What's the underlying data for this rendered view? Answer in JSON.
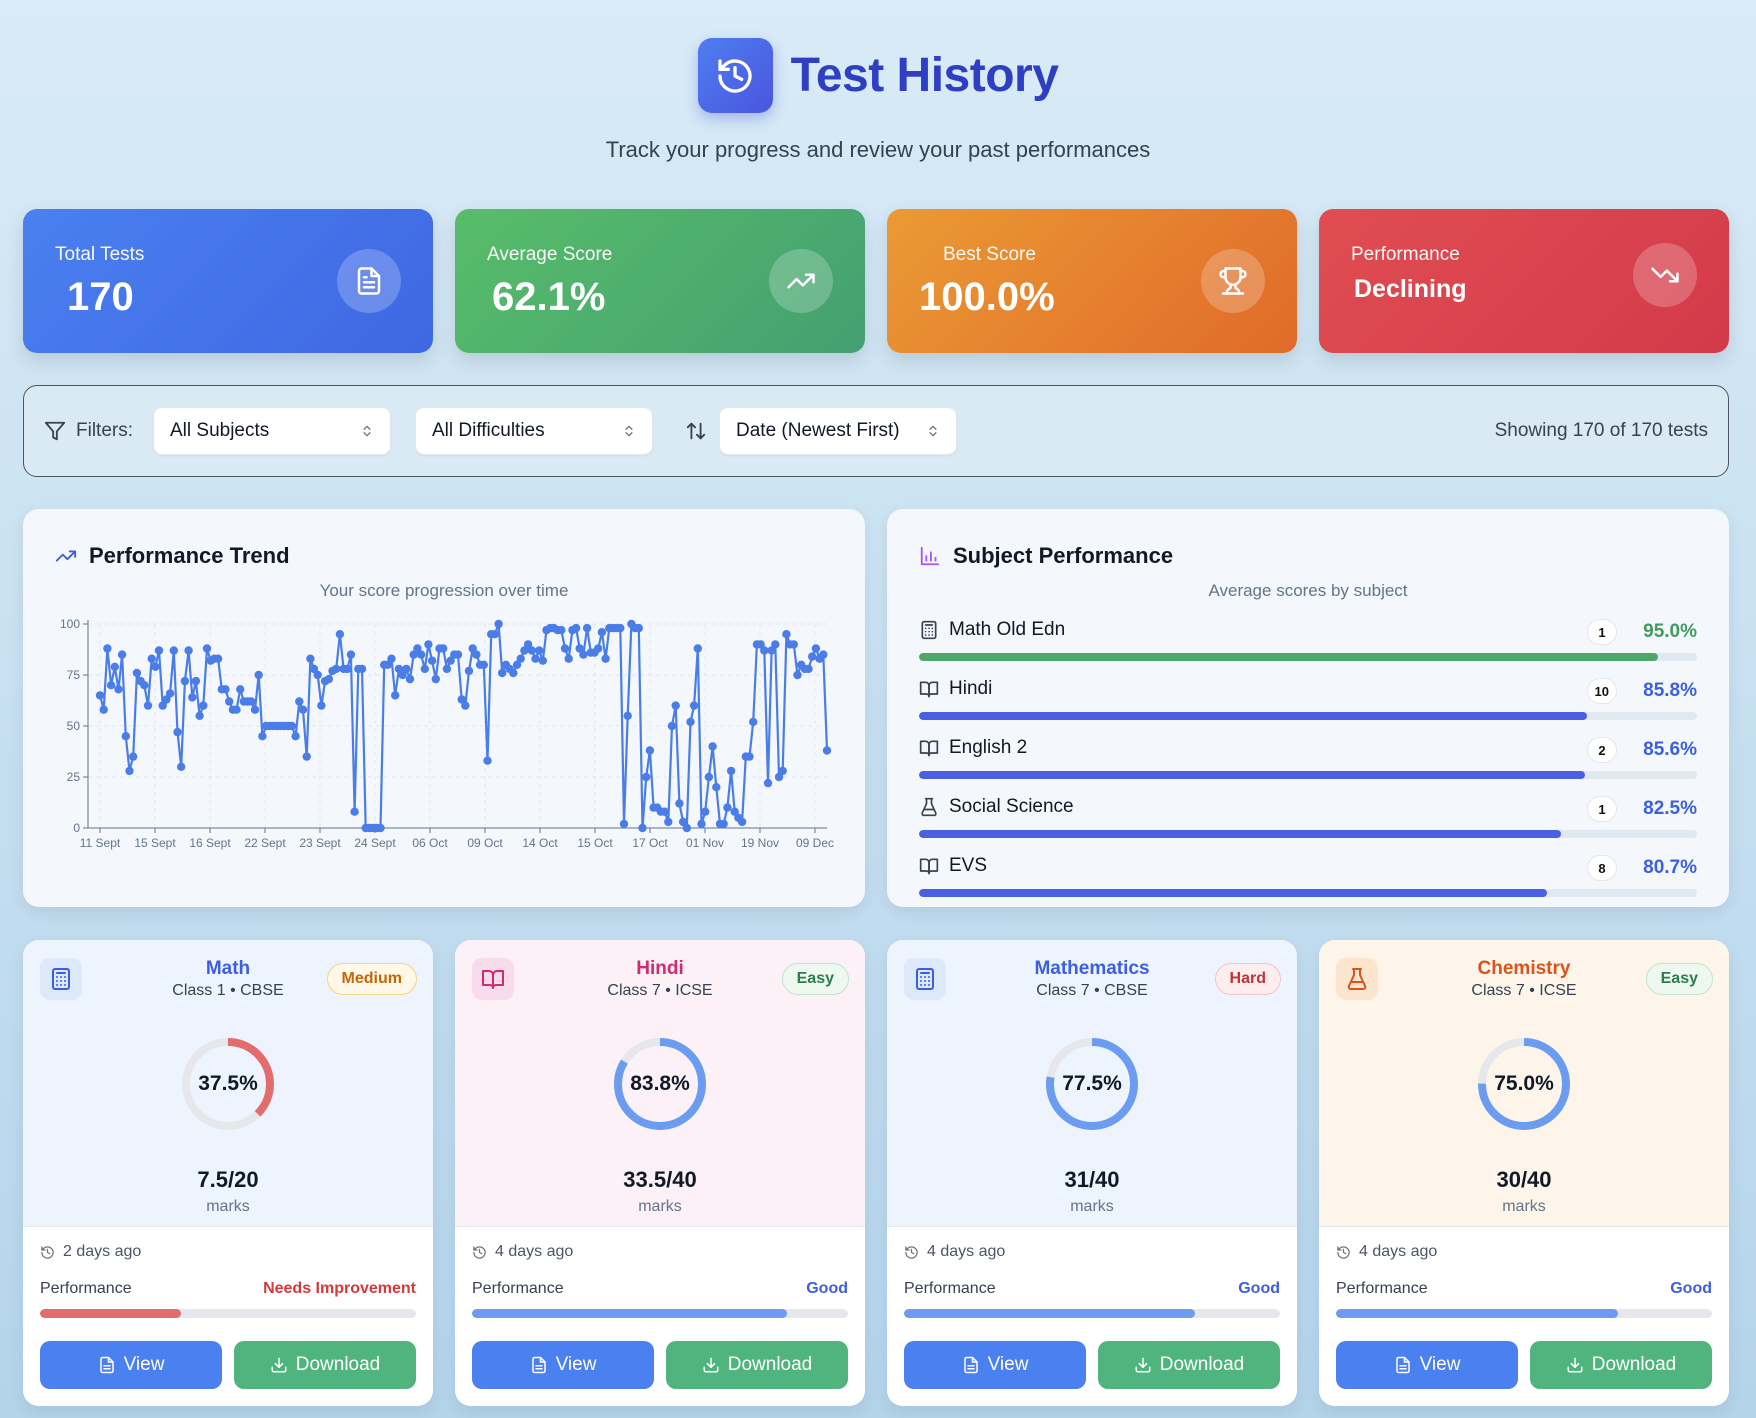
{
  "header": {
    "title": "Test History",
    "subtitle": "Track your progress and review your past performances",
    "icon": "history-icon"
  },
  "stats": [
    {
      "label": "Total Tests",
      "value": "170",
      "icon": "document-icon"
    },
    {
      "label": "Average Score",
      "value": "62.1%",
      "icon": "trending-up-icon"
    },
    {
      "label": "Best Score",
      "value": "100.0%",
      "icon": "trophy-icon"
    },
    {
      "label": "Performance",
      "value": "Declining",
      "icon": "trending-down-icon"
    }
  ],
  "filters": {
    "label": "Filters:",
    "subject": "All Subjects",
    "difficulty": "All Difficulties",
    "sort": "Date (Newest First)",
    "count": "Showing 170 of 170 tests"
  },
  "trend": {
    "title": "Performance Trend",
    "subtitle": "Your score progression over time"
  },
  "subject_performance": {
    "title": "Subject Performance",
    "subtitle": "Average scores by subject",
    "items": [
      {
        "name": "Math Old Edn",
        "icon": "calculator-icon",
        "count": "1",
        "pct": "95.0%",
        "value": 95.0,
        "color": "#3f9c5e",
        "bar": "#4fa66a"
      },
      {
        "name": "Hindi",
        "icon": "book-icon",
        "count": "10",
        "pct": "85.8%",
        "value": 85.8,
        "color": "#3b5fe0",
        "bar": "#4b5fe3"
      },
      {
        "name": "English 2",
        "icon": "book-icon",
        "count": "2",
        "pct": "85.6%",
        "value": 85.6,
        "color": "#3b5fe0",
        "bar": "#4b5fe3"
      },
      {
        "name": "Social Science",
        "icon": "flask-icon",
        "count": "1",
        "pct": "82.5%",
        "value": 82.5,
        "color": "#3b5fe0",
        "bar": "#4b5fe3"
      },
      {
        "name": "EVS",
        "icon": "book-icon",
        "count": "8",
        "pct": "80.7%",
        "value": 80.7,
        "color": "#3b5fe0",
        "bar": "#4b5fe3"
      }
    ]
  },
  "tests": [
    {
      "subject": "Math",
      "class": "Class 1 • CBSE",
      "difficulty": "Medium",
      "percent": "37.5%",
      "percent_value": 37.5,
      "marks": "7.5/20",
      "marks_label": "marks",
      "ago": "2 days ago",
      "perf_label": "Performance",
      "perf": "Needs Improvement",
      "view": "View",
      "download": "Download",
      "icon": "calculator-icon"
    },
    {
      "subject": "Hindi",
      "class": "Class 7 • ICSE",
      "difficulty": "Easy",
      "percent": "83.8%",
      "percent_value": 83.8,
      "marks": "33.5/40",
      "marks_label": "marks",
      "ago": "4 days ago",
      "perf_label": "Performance",
      "perf": "Good",
      "view": "View",
      "download": "Download",
      "icon": "book-icon"
    },
    {
      "subject": "Mathematics",
      "class": "Class 7 • CBSE",
      "difficulty": "Hard",
      "percent": "77.5%",
      "percent_value": 77.5,
      "marks": "31/40",
      "marks_label": "marks",
      "ago": "4 days ago",
      "perf_label": "Performance",
      "perf": "Good",
      "view": "View",
      "download": "Download",
      "icon": "calculator-icon"
    },
    {
      "subject": "Chemistry",
      "class": "Class 7 • ICSE",
      "difficulty": "Easy",
      "percent": "75.0%",
      "percent_value": 75.0,
      "marks": "30/40",
      "marks_label": "marks",
      "ago": "4 days ago",
      "perf_label": "Performance",
      "perf": "Good",
      "view": "View",
      "download": "Download",
      "icon": "flask-icon"
    }
  ],
  "chart_data": {
    "type": "line",
    "title": "Performance Trend",
    "subtitle": "Your score progression over time",
    "xlabel": "",
    "ylabel": "",
    "ylim": [
      0,
      100
    ],
    "yticks": [
      0,
      25,
      50,
      75,
      100
    ],
    "xtick_labels": [
      "11 Sept",
      "15 Sept",
      "16 Sept",
      "22 Sept",
      "23 Sept",
      "24 Sept",
      "06 Oct",
      "09 Oct",
      "14 Oct",
      "15 Oct",
      "17 Oct",
      "01 Nov",
      "19 Nov",
      "09 Dec"
    ],
    "grid": true,
    "series": [
      {
        "color": "#4a7de8",
        "values": [
          65,
          58,
          88,
          70,
          79,
          68,
          85,
          45,
          28,
          35,
          76,
          72,
          70,
          60,
          83,
          79,
          87,
          60,
          63,
          66,
          87,
          47,
          30,
          72,
          87,
          64,
          72,
          55,
          60,
          88,
          82,
          83,
          83,
          68,
          68,
          62,
          58,
          58,
          68,
          62,
          62,
          62,
          58,
          75,
          45,
          50,
          50,
          50,
          50,
          50,
          50,
          50,
          50,
          45,
          62,
          58,
          35,
          83,
          78,
          75,
          60,
          72,
          73,
          77,
          78,
          95,
          78,
          78,
          85,
          8,
          78,
          78,
          0,
          0,
          0,
          0,
          0,
          80,
          80,
          83,
          65,
          78,
          75,
          78,
          73,
          85,
          88,
          85,
          78,
          90,
          82,
          73,
          88,
          88,
          78,
          82,
          85,
          85,
          63,
          60,
          77,
          88,
          85,
          80,
          80,
          33,
          95,
          95,
          100,
          76,
          80,
          78,
          76,
          80,
          83,
          87,
          90,
          87,
          83,
          87,
          82,
          97,
          98,
          98,
          97,
          97,
          88,
          83,
          97,
          98,
          88,
          85,
          98,
          86,
          86,
          88,
          96,
          83,
          98,
          98,
          98,
          98,
          2,
          55,
          100,
          98,
          98,
          0,
          25,
          38,
          10,
          10,
          8,
          8,
          3,
          50,
          60,
          12,
          3,
          0,
          52,
          60,
          88,
          2,
          8,
          25,
          40,
          20,
          2,
          2,
          10,
          28,
          8,
          5,
          3,
          35,
          35,
          52,
          90,
          90,
          87,
          22,
          87,
          90,
          25,
          28,
          95,
          90,
          90,
          75,
          80,
          78,
          78,
          84,
          88,
          83,
          85,
          38
        ]
      }
    ]
  }
}
